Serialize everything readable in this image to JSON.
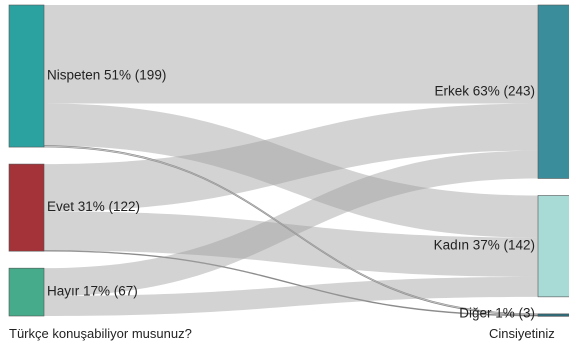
{
  "chart_data": {
    "type": "sankey",
    "axis_labels": {
      "left": "Türkçe konuşabiliyor musunuz?",
      "right": "Cinsiyetiniz"
    },
    "source_nodes": [
      {
        "id": "nispeten",
        "label": "Nispeten 51% (199)",
        "value": 199,
        "color": "#2ba2a0"
      },
      {
        "id": "evet",
        "label": "Evet 31% (122)",
        "value": 122,
        "color": "#a33239"
      },
      {
        "id": "hayir",
        "label": "Hayır 17% (67)",
        "value": 67,
        "color": "#45ab8a"
      }
    ],
    "target_nodes": [
      {
        "id": "erkek",
        "label": "Erkek 63% (243)",
        "value": 243,
        "color": "#3a8e9c"
      },
      {
        "id": "kadin",
        "label": "Kadın 37% (142)",
        "value": 142,
        "color": "#a8dad6"
      },
      {
        "id": "diger",
        "label": "Diğer 1% (3)",
        "value": 3,
        "color": "#2e6a78"
      }
    ],
    "links": [
      {
        "source": "nispeten",
        "target": "erkek",
        "value": 138
      },
      {
        "source": "nispeten",
        "target": "kadin",
        "value": 59
      },
      {
        "source": "nispeten",
        "target": "diger",
        "value": 2
      },
      {
        "source": "evet",
        "target": "erkek",
        "value": 66
      },
      {
        "source": "evet",
        "target": "kadin",
        "value": 55
      },
      {
        "source": "evet",
        "target": "diger",
        "value": 1
      },
      {
        "source": "hayir",
        "target": "erkek",
        "value": 39
      },
      {
        "source": "hayir",
        "target": "kadin",
        "value": 28
      }
    ],
    "link_color": "#9e9e9e"
  }
}
